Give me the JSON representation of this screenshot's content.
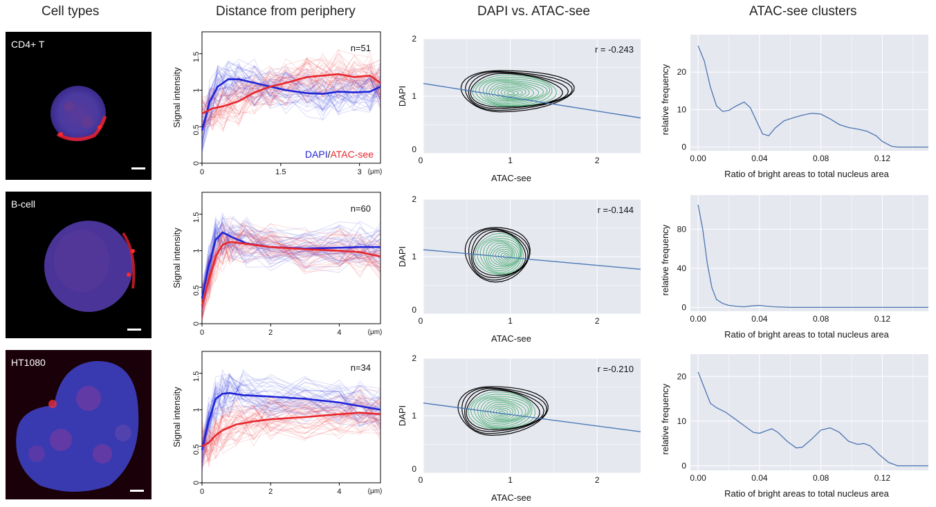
{
  "column_titles": {
    "cell_types": "Cell types",
    "distance": "Distance from periphery",
    "dapi_atac": "DAPI vs. ATAC-see",
    "clusters": "ATAC-see clusters"
  },
  "cells": [
    {
      "label": "CD4+ T"
    },
    {
      "label": "B-cell"
    },
    {
      "label": "HT1080"
    }
  ],
  "colors": {
    "dapi": "#1f24d6",
    "atac": "#e8262b",
    "contour_outer": "#000000",
    "contour_inner": "#3fa86a",
    "fit_line": "#4a79b5",
    "density_line": "#4a74b0",
    "panel_bg": "#e6e8f0"
  },
  "chart_data": [
    {
      "type": "line",
      "row": 0,
      "panel": "distance",
      "ylabel": "Signal intensity",
      "xunit": "(μm)",
      "annotation": "n=51",
      "legend": {
        "dapi": "DAPI",
        "sep": "/",
        "atac": "ATAC-see"
      },
      "xlim": [
        0,
        3.4
      ],
      "ylim": [
        0,
        1.8
      ],
      "xticks": [
        0,
        1.5,
        3
      ],
      "xtick_labels": [
        "0",
        "1.5",
        "3"
      ],
      "yticks": [
        0,
        0.5,
        1,
        1.5
      ],
      "ytick_labels": [
        "0",
        "0.5",
        "1",
        "1.5"
      ],
      "series": [
        {
          "name": "DAPI",
          "x": [
            0,
            0.15,
            0.3,
            0.5,
            0.7,
            1.0,
            1.3,
            1.6,
            2.0,
            2.3,
            2.6,
            2.9,
            3.2,
            3.4
          ],
          "y": [
            0.45,
            0.85,
            1.05,
            1.15,
            1.15,
            1.1,
            1.05,
            1.0,
            0.96,
            0.95,
            0.98,
            0.97,
            0.98,
            1.05
          ]
        },
        {
          "name": "ATAC-see",
          "x": [
            0,
            0.2,
            0.4,
            0.7,
            1.0,
            1.3,
            1.6,
            2.0,
            2.3,
            2.6,
            2.9,
            3.2,
            3.4
          ],
          "y": [
            0.68,
            0.75,
            0.78,
            0.85,
            0.97,
            1.05,
            1.1,
            1.18,
            1.2,
            1.22,
            1.18,
            1.2,
            1.1
          ]
        }
      ]
    },
    {
      "type": "line",
      "row": 1,
      "panel": "distance",
      "ylabel": "Signal intensity",
      "xunit": "(μm)",
      "annotation": "n=60",
      "xlim": [
        0,
        5.2
      ],
      "ylim": [
        0,
        1.8
      ],
      "xticks": [
        0,
        2,
        4
      ],
      "xtick_labels": [
        "0",
        "2",
        "4"
      ],
      "yticks": [
        0,
        0.5,
        1,
        1.5
      ],
      "ytick_labels": [
        "0",
        "0.5",
        "1",
        "1.5"
      ],
      "series": [
        {
          "name": "DAPI",
          "x": [
            0,
            0.2,
            0.4,
            0.6,
            0.9,
            1.3,
            2.0,
            3.0,
            4.0,
            4.6,
            5.2
          ],
          "y": [
            0.35,
            0.8,
            1.15,
            1.25,
            1.18,
            1.1,
            1.05,
            1.03,
            1.04,
            1.05,
            1.05
          ]
        },
        {
          "name": "ATAC-see",
          "x": [
            0,
            0.2,
            0.4,
            0.6,
            0.8,
            1.2,
            2.0,
            3.0,
            4.0,
            4.6,
            5.2
          ],
          "y": [
            0.25,
            0.6,
            0.92,
            1.08,
            1.12,
            1.1,
            1.05,
            1.02,
            1.0,
            0.98,
            0.92
          ]
        }
      ]
    },
    {
      "type": "line",
      "row": 2,
      "panel": "distance",
      "ylabel": "Signal intensity",
      "xunit": "(μm)",
      "annotation": "n=34",
      "xlim": [
        0,
        5.2
      ],
      "ylim": [
        0,
        1.8
      ],
      "xticks": [
        0,
        2,
        4
      ],
      "xtick_labels": [
        "0",
        "2",
        "4"
      ],
      "yticks": [
        0,
        0.5,
        1,
        1.5
      ],
      "ytick_labels": [
        "0",
        "0.5",
        "1",
        "1.5"
      ],
      "series": [
        {
          "name": "DAPI",
          "x": [
            0,
            0.2,
            0.4,
            0.6,
            0.8,
            1.2,
            2.0,
            3.0,
            4.0,
            4.6,
            5.2
          ],
          "y": [
            0.45,
            0.85,
            1.15,
            1.22,
            1.23,
            1.2,
            1.18,
            1.15,
            1.1,
            1.05,
            1.0
          ]
        },
        {
          "name": "ATAC-see",
          "x": [
            0,
            0.2,
            0.4,
            0.6,
            1.0,
            1.5,
            2.0,
            3.0,
            4.0,
            4.6,
            5.2
          ],
          "y": [
            0.5,
            0.55,
            0.65,
            0.72,
            0.8,
            0.84,
            0.87,
            0.9,
            0.94,
            0.96,
            0.94
          ]
        }
      ]
    },
    {
      "type": "contour",
      "row": 0,
      "panel": "scatter",
      "xlabel": "ATAC-see",
      "ylabel": "DAPI",
      "annotation": "r = -0.243",
      "xlim": [
        0,
        2.5
      ],
      "ylim": [
        0,
        2
      ],
      "xticks": [
        0,
        1,
        2
      ],
      "xtick_labels": [
        "0",
        "1",
        "2"
      ],
      "yticks": [
        0,
        1,
        2
      ],
      "ytick_labels": [
        "0",
        "1",
        "2"
      ],
      "center": [
        1.0,
        1.05
      ],
      "spread": [
        1.1,
        0.72
      ],
      "skew": 0.55,
      "fit": {
        "x": [
          0,
          2.5
        ],
        "y": [
          1.22,
          0.62
        ]
      }
    },
    {
      "type": "contour",
      "row": 1,
      "panel": "scatter",
      "xlabel": "ATAC-see",
      "ylabel": "DAPI",
      "annotation": "r =-0.144",
      "xlim": [
        0,
        2.5
      ],
      "ylim": [
        0,
        2
      ],
      "xticks": [
        0,
        1,
        2
      ],
      "xtick_labels": [
        "0",
        "1",
        "2"
      ],
      "yticks": [
        0,
        1,
        2
      ],
      "ytick_labels": [
        "0",
        "1",
        "2"
      ],
      "center": [
        0.95,
        1.0
      ],
      "spread": [
        0.72,
        0.95
      ],
      "skew": 0.1,
      "fit": {
        "x": [
          0,
          2.5
        ],
        "y": [
          1.12,
          0.78
        ]
      }
    },
    {
      "type": "contour",
      "row": 2,
      "panel": "scatter",
      "xlabel": "ATAC-see",
      "ylabel": "DAPI",
      "annotation": "r =-0.210",
      "xlim": [
        0,
        2.5
      ],
      "ylim": [
        0,
        2
      ],
      "xticks": [
        0,
        1,
        2
      ],
      "xtick_labels": [
        "0",
        "1",
        "2"
      ],
      "yticks": [
        0,
        1,
        2
      ],
      "ytick_labels": [
        "0",
        "1",
        "2"
      ],
      "center": [
        0.9,
        1.05
      ],
      "spread": [
        0.9,
        0.85
      ],
      "skew": 0.45,
      "fit": {
        "x": [
          0,
          2.5
        ],
        "y": [
          1.22,
          0.72
        ]
      }
    },
    {
      "type": "line",
      "row": 0,
      "panel": "density",
      "xlabel": "Ratio of bright areas to total nucleus area",
      "ylabel": "relative frequency",
      "xlim": [
        -0.005,
        0.15
      ],
      "ylim": [
        -1,
        30
      ],
      "xticks": [
        0,
        0.04,
        0.08,
        0.12
      ],
      "xtick_labels": [
        "0.00",
        "0.04",
        "0.08",
        "0.12"
      ],
      "yticks": [
        0,
        10,
        20
      ],
      "ytick_labels": [
        "0",
        "10",
        "20"
      ],
      "series": [
        {
          "x": [
            0,
            0.004,
            0.008,
            0.012,
            0.016,
            0.02,
            0.025,
            0.03,
            0.034,
            0.038,
            0.042,
            0.046,
            0.05,
            0.056,
            0.062,
            0.068,
            0.074,
            0.08,
            0.086,
            0.092,
            0.098,
            0.104,
            0.11,
            0.116,
            0.12,
            0.126,
            0.13,
            0.14,
            0.15
          ],
          "y": [
            27,
            23,
            16,
            11,
            9.5,
            9.8,
            11,
            12,
            10.5,
            7,
            3.5,
            3,
            5,
            7,
            7.8,
            8.5,
            9,
            8.8,
            7.5,
            6,
            5.2,
            4.8,
            4.2,
            3,
            1.5,
            0.2,
            0,
            0,
            0
          ]
        }
      ]
    },
    {
      "type": "line",
      "row": 1,
      "panel": "density",
      "xlabel": "Ratio of bright areas to total nucleus area",
      "ylabel": "relative frequency",
      "xlim": [
        -0.005,
        0.15
      ],
      "ylim": [
        -4,
        115
      ],
      "xticks": [
        0,
        0.04,
        0.08,
        0.12
      ],
      "xtick_labels": [
        "0.00",
        "0.04",
        "0.08",
        "0.12"
      ],
      "yticks": [
        0,
        40,
        80
      ],
      "ytick_labels": [
        "0",
        "40",
        "80"
      ],
      "series": [
        {
          "x": [
            0,
            0.003,
            0.006,
            0.009,
            0.012,
            0.016,
            0.02,
            0.025,
            0.03,
            0.035,
            0.04,
            0.045,
            0.05,
            0.06,
            0.08,
            0.1,
            0.12,
            0.15
          ],
          "y": [
            105,
            80,
            45,
            20,
            8,
            4,
            2,
            1,
            0.5,
            1.5,
            2,
            1,
            0.5,
            0,
            0,
            0,
            0,
            0
          ]
        }
      ]
    },
    {
      "type": "line",
      "row": 2,
      "panel": "density",
      "xlabel": "Ratio of bright areas to total nucleus area",
      "ylabel": "relative frequency",
      "xlim": [
        -0.005,
        0.15
      ],
      "ylim": [
        -1,
        25
      ],
      "xticks": [
        0,
        0.04,
        0.08,
        0.12
      ],
      "xtick_labels": [
        "0.00",
        "0.04",
        "0.08",
        "0.12"
      ],
      "yticks": [
        0,
        10,
        20
      ],
      "ytick_labels": [
        "0",
        "10",
        "20"
      ],
      "series": [
        {
          "x": [
            0,
            0.004,
            0.008,
            0.012,
            0.018,
            0.024,
            0.03,
            0.036,
            0.04,
            0.044,
            0.048,
            0.052,
            0.058,
            0.064,
            0.068,
            0.074,
            0.08,
            0.086,
            0.092,
            0.098,
            0.104,
            0.108,
            0.112,
            0.118,
            0.124,
            0.13,
            0.14,
            0.15
          ],
          "y": [
            21,
            17.5,
            14,
            13,
            12,
            10.5,
            9,
            7.5,
            7.3,
            7.8,
            8.3,
            7.5,
            5.5,
            4,
            4.2,
            6,
            8,
            8.5,
            7.5,
            5.5,
            4.8,
            5,
            4.5,
            2.5,
            0.8,
            0,
            0,
            0
          ]
        }
      ]
    }
  ]
}
